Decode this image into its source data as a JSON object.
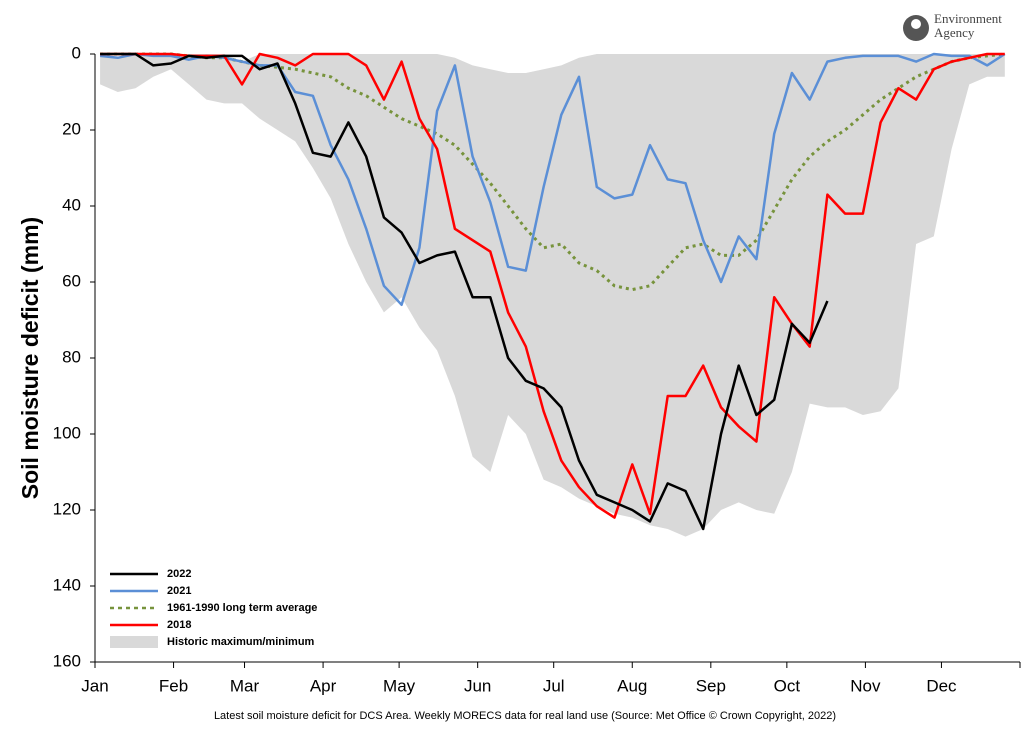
{
  "chart_data": {
    "type": "line",
    "y_label": "Soil moisture deficit (mm)",
    "source": "Latest soil moisture deficit for DCS Area. Weekly MORECS data for real land use (Source: Met Office © Crown Copyright, 2022)",
    "logo": [
      "Environment",
      "Agency"
    ],
    "invert_y": true,
    "legend": "lower left",
    "xlim": [
      0,
      365
    ],
    "xticks": [
      {
        "value": 0,
        "label": "Jan"
      },
      {
        "value": 31,
        "label": "Feb"
      },
      {
        "value": 59,
        "label": "Mar"
      },
      {
        "value": 90,
        "label": "Apr"
      },
      {
        "value": 120,
        "label": "May"
      },
      {
        "value": 151,
        "label": "Jun"
      },
      {
        "value": 181,
        "label": "Jul"
      },
      {
        "value": 212,
        "label": "Aug"
      },
      {
        "value": 243,
        "label": "Sep"
      },
      {
        "value": 273,
        "label": "Oct"
      },
      {
        "value": 304,
        "label": "Nov"
      },
      {
        "value": 334,
        "label": "Dec"
      }
    ],
    "ylim": [
      0,
      160
    ],
    "yticks": [
      0,
      20,
      40,
      60,
      80,
      100,
      120,
      140,
      160
    ],
    "x": [
      2,
      9,
      16,
      23,
      30,
      37,
      44,
      51,
      58,
      65,
      72,
      79,
      86,
      93,
      100,
      107,
      114,
      121,
      128,
      135,
      142,
      149,
      156,
      163,
      170,
      177,
      184,
      191,
      198,
      205,
      212,
      219,
      226,
      233,
      240,
      247,
      254,
      261,
      268,
      275,
      282,
      289,
      296,
      303,
      310,
      317,
      324,
      331,
      338,
      345,
      352,
      359
    ],
    "series": [
      {
        "name": "2022",
        "color": "#000000",
        "style": "solid",
        "values": [
          0,
          0,
          0,
          3,
          2.5,
          0.5,
          1,
          0.5,
          0.5,
          4,
          2.5,
          13,
          26,
          27,
          18,
          27,
          43,
          47,
          55,
          53,
          52,
          64,
          64,
          80,
          86,
          88,
          93,
          107,
          116,
          118,
          120,
          123,
          113,
          115,
          125,
          100,
          82,
          95,
          91,
          71,
          76,
          65,
          null,
          null,
          null,
          null,
          null,
          null,
          null,
          null,
          null,
          null
        ]
      },
      {
        "name": "2021",
        "color": "#5b8fd6",
        "style": "solid",
        "values": [
          0.5,
          1,
          0,
          0.5,
          0.5,
          1.5,
          0.5,
          1,
          2,
          3,
          3,
          10,
          11,
          24,
          33,
          46,
          61,
          66,
          51,
          15,
          3,
          27,
          39,
          56,
          57,
          35,
          16,
          6,
          35,
          38,
          37,
          24,
          33,
          34,
          49,
          60,
          48,
          54,
          21,
          5,
          12,
          2,
          1,
          0.5,
          0.5,
          0.5,
          2,
          0,
          0.5,
          0.5,
          3,
          0
        ]
      },
      {
        "name": "1961-1990 long term average",
        "color": "#77933c",
        "style": "dotted",
        "values": [
          0,
          0,
          0,
          0,
          0,
          0.5,
          1,
          1,
          2,
          3,
          3.5,
          4,
          5,
          6,
          9,
          11,
          14,
          17,
          19,
          21,
          24,
          29,
          34,
          40,
          46,
          51,
          50,
          55,
          57,
          61,
          62,
          61,
          56,
          51,
          50,
          53,
          53,
          49,
          41,
          33,
          27,
          23,
          20,
          16,
          12,
          9,
          6,
          4,
          2,
          1,
          0.5,
          0
        ]
      },
      {
        "name": "2018",
        "color": "#ff0000",
        "style": "solid",
        "values": [
          0,
          0,
          0,
          0,
          0,
          0.5,
          0.5,
          0.5,
          8,
          0,
          1,
          3,
          0,
          0,
          0,
          3,
          12,
          2,
          17,
          25,
          46,
          49,
          52,
          68,
          77,
          94,
          107,
          114,
          119,
          122,
          108,
          121,
          90,
          90,
          82,
          93,
          98,
          102,
          64,
          71,
          77,
          37,
          42,
          42,
          18,
          9,
          12,
          4,
          2,
          1,
          0,
          0
        ]
      },
      {
        "name": "Historic maximum/minimum",
        "color": "#d9d9d9",
        "style": "band",
        "lower": [
          0,
          1,
          0,
          0,
          0,
          0,
          0,
          0,
          2,
          0,
          0,
          0,
          0,
          0,
          0,
          0,
          0,
          0,
          0,
          0,
          1,
          3,
          4,
          5,
          5,
          4,
          3,
          1,
          0,
          0,
          0,
          0,
          0,
          0,
          0,
          0,
          0,
          0,
          0,
          0,
          0,
          0,
          0,
          0,
          0,
          0,
          0,
          0,
          0,
          0,
          0,
          0
        ],
        "upper": [
          8,
          10,
          9,
          6,
          4,
          8,
          12,
          13,
          13,
          17,
          20,
          23,
          30,
          38,
          50,
          60,
          68,
          64,
          72,
          78,
          90,
          106,
          110,
          95,
          100,
          112,
          114,
          117,
          119,
          121,
          122,
          124,
          125,
          127,
          125,
          120,
          118,
          120,
          121,
          110,
          92,
          93,
          93,
          95,
          94,
          88,
          50,
          48,
          25,
          8,
          6,
          6
        ]
      }
    ]
  }
}
